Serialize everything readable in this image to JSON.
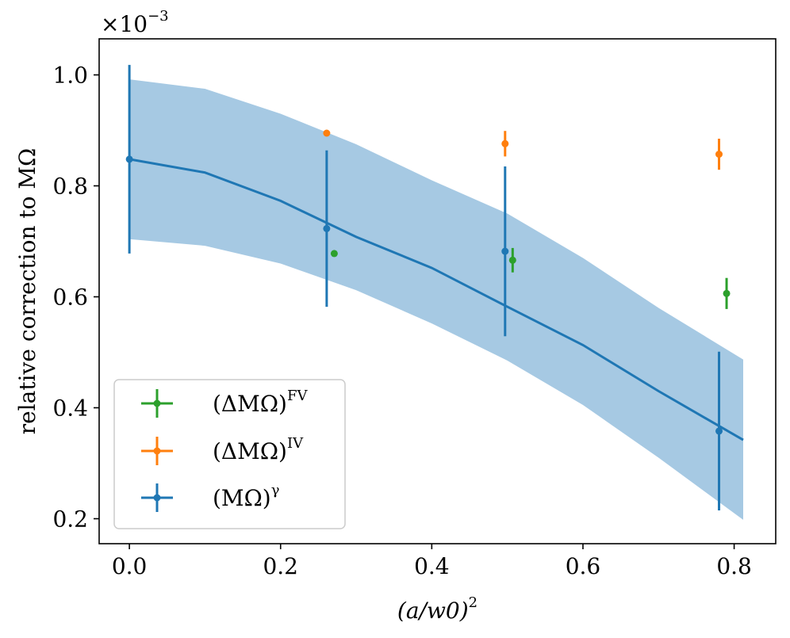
{
  "chart_data": {
    "type": "scatter",
    "xlabel": "(a/w0)^2",
    "ylabel": "relative correction to MΩ",
    "offset_label": "×10^-3",
    "xlim": [
      -0.04,
      0.855
    ],
    "ylim": [
      0.155,
      1.065
    ],
    "x_ticks": [
      0.0,
      0.2,
      0.4,
      0.6,
      0.8
    ],
    "y_ticks": [
      0.2,
      0.4,
      0.6,
      0.8,
      1.0
    ],
    "x_tick_labels": [
      "0.0",
      "0.2",
      "0.4",
      "0.6",
      "0.8"
    ],
    "y_tick_labels": [
      "0.2",
      "0.4",
      "0.6",
      "0.8",
      "1.0"
    ],
    "legend_position": "lower-left",
    "series": [
      {
        "name": "(ΔMΩ)FV",
        "legend_main": "(ΔMΩ)",
        "legend_sup": "FV",
        "color": "#2ca02c",
        "points": [
          {
            "x": 0.271,
            "y": 0.678,
            "err": 0.0
          },
          {
            "x": 0.507,
            "y": 0.666,
            "err": 0.022
          },
          {
            "x": 0.79,
            "y": 0.606,
            "err": 0.028
          }
        ]
      },
      {
        "name": "(ΔMΩ)IV",
        "legend_main": "(ΔMΩ)",
        "legend_sup": "IV",
        "color": "#ff7f0e",
        "points": [
          {
            "x": 0.261,
            "y": 0.895,
            "err": 0.0
          },
          {
            "x": 0.497,
            "y": 0.876,
            "err": 0.023
          },
          {
            "x": 0.78,
            "y": 0.857,
            "err": 0.028
          }
        ]
      },
      {
        "name": "(MΩ)γ",
        "legend_main": "(MΩ)",
        "legend_sup": "γ",
        "color": "#1f77b4",
        "points": [
          {
            "x": 0.0,
            "y": 0.848,
            "err": 0.17
          },
          {
            "x": 0.261,
            "y": 0.723,
            "err": 0.141
          },
          {
            "x": 0.497,
            "y": 0.682,
            "err": 0.153
          },
          {
            "x": 0.78,
            "y": 0.358,
            "err": 0.143
          }
        ]
      }
    ],
    "fit": {
      "color": "#1f77b4",
      "band_color": "#a6c9e3",
      "x": [
        0.0,
        0.1,
        0.2,
        0.3,
        0.4,
        0.5,
        0.6,
        0.7,
        0.812
      ],
      "y": [
        0.848,
        0.824,
        0.773,
        0.708,
        0.652,
        0.582,
        0.513,
        0.43,
        0.342
      ],
      "upper": [
        0.992,
        0.975,
        0.93,
        0.875,
        0.81,
        0.75,
        0.67,
        0.58,
        0.487
      ],
      "lower": [
        0.704,
        0.692,
        0.66,
        0.612,
        0.552,
        0.485,
        0.405,
        0.31,
        0.198
      ]
    }
  }
}
